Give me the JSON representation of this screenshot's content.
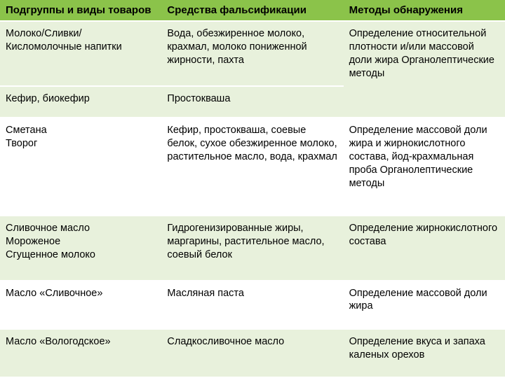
{
  "table": {
    "headers": {
      "col1": "Подгруппы и виды товаров",
      "col2": "Средства фальсификации",
      "col3": "Методы обнаружения"
    },
    "rows": [
      {
        "col1": "Молоко/Сливки/Кисломолочные напитки",
        "col2": "Вода, обезжиренное молоко, крахмал, молоко пониженной жирности, пахта",
        "col3": "Определение относительной плотности и/или массовой доли жира Органолептические методы",
        "row_class": "odd"
      },
      {
        "col1": "Кефир, биокефир",
        "col2": "Простокваша",
        "col3": "",
        "row_class": "odd"
      },
      {
        "col1": "Сметана\nТворог",
        "col2": "Кефир, простокваша, соевые белок, сухое обезжиренное молоко, растительное масло, вода, крахмал",
        "col3": "Определение массовой доли жира и жирнокислотного состава, йод-крахмальная проба Органолептические методы",
        "row_class": "even"
      },
      {
        "col1": "Сливочное масло\nМороженое\nСгущенное молоко",
        "col2": "Гидрогенизированные жиры, маргарины, растительное масло, соевый белок",
        "col3": "Определение жирнокислотного состава",
        "row_class": "odd"
      },
      {
        "col1": "Масло «Сливочное»",
        "col2": "Масляная паста",
        "col3": "Определение массовой доли жира",
        "row_class": "even"
      },
      {
        "col1": "Масло «Вологодское»",
        "col2": "Сладкосливочное масло",
        "col3": "Определение вкуса и запаха каленых орехов",
        "row_class": "odd"
      }
    ],
    "style": {
      "header_bg": "#8bc34a",
      "odd_bg": "#e8f1dc",
      "even_bg": "#ffffff",
      "border_color": "#ffffff",
      "font_family": "Arial",
      "header_font_size": 15,
      "cell_font_size": 14.5
    }
  }
}
